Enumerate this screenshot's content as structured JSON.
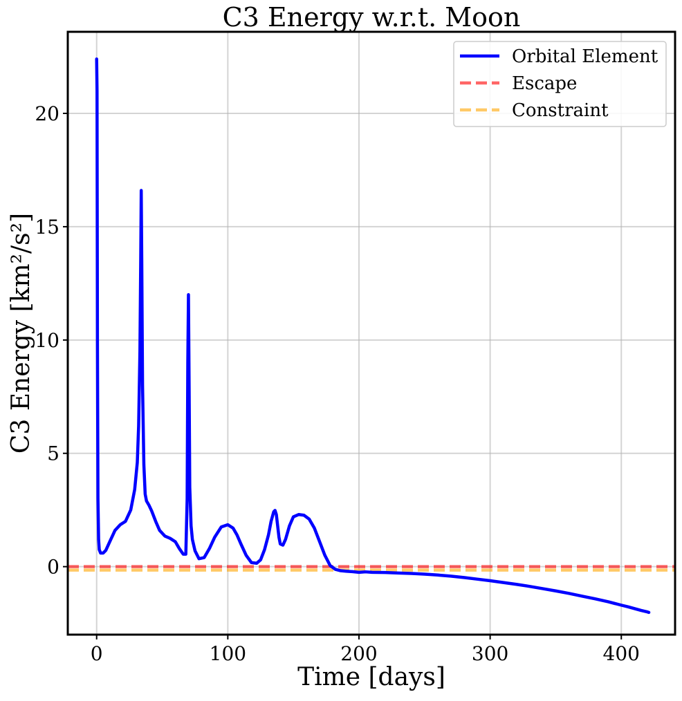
{
  "chart_data": {
    "type": "line",
    "title": "C3 Energy w.r.t. Moon",
    "xlabel": "Time [days]",
    "ylabel": "C3 Energy [km²/s²]",
    "xlim": [
      -22,
      441
    ],
    "ylim": [
      -3,
      23.6
    ],
    "xticks": [
      0,
      100,
      200,
      300,
      400
    ],
    "yticks": [
      0,
      5,
      10,
      15,
      20
    ],
    "grid": true,
    "legend_position": "top-right",
    "series": [
      {
        "name": "Orbital Element",
        "style": "solid",
        "color": "#0000ff",
        "x": [
          0,
          0.3,
          0.6,
          1,
          1.5,
          2,
          3,
          5,
          7,
          10,
          14,
          18,
          22,
          26,
          29,
          31,
          32,
          33,
          33.6,
          34,
          34.4,
          35,
          36,
          37,
          38,
          40,
          42,
          45,
          48,
          52,
          56,
          60,
          63,
          66,
          68,
          69,
          69.5,
          70,
          70.5,
          71,
          72,
          73,
          75,
          78,
          82,
          86,
          90,
          95,
          100,
          104,
          107,
          110,
          114,
          118,
          122,
          125,
          128,
          131,
          133,
          135,
          136,
          137,
          138,
          139,
          140,
          142,
          144,
          147,
          150,
          154,
          158,
          162,
          166,
          170,
          174,
          178,
          182,
          186,
          190,
          195,
          200,
          205,
          210,
          220,
          230,
          240,
          250,
          260,
          270,
          280,
          290,
          300,
          310,
          320,
          330,
          340,
          350,
          360,
          370,
          380,
          390,
          400,
          405,
          410,
          415,
          420,
          421
        ],
        "y": [
          22.4,
          21.0,
          10.0,
          3.0,
          1.2,
          0.75,
          0.6,
          0.6,
          0.72,
          1.1,
          1.6,
          1.85,
          2.0,
          2.5,
          3.4,
          4.6,
          6.2,
          9.5,
          13.5,
          16.6,
          13.5,
          8.0,
          4.5,
          3.2,
          2.9,
          2.7,
          2.45,
          2.0,
          1.6,
          1.35,
          1.25,
          1.1,
          0.8,
          0.55,
          0.55,
          3.0,
          9.0,
          12.0,
          8.0,
          3.5,
          1.8,
          1.2,
          0.7,
          0.35,
          0.4,
          0.8,
          1.3,
          1.75,
          1.85,
          1.7,
          1.4,
          1.0,
          0.5,
          0.18,
          0.15,
          0.3,
          0.75,
          1.4,
          2.0,
          2.42,
          2.48,
          2.3,
          1.8,
          1.3,
          1.0,
          0.95,
          1.2,
          1.8,
          2.2,
          2.3,
          2.27,
          2.1,
          1.7,
          1.1,
          0.5,
          0.05,
          -0.12,
          -0.18,
          -0.2,
          -0.22,
          -0.25,
          -0.23,
          -0.25,
          -0.26,
          -0.28,
          -0.3,
          -0.33,
          -0.37,
          -0.42,
          -0.48,
          -0.55,
          -0.62,
          -0.7,
          -0.78,
          -0.87,
          -0.97,
          -1.07,
          -1.18,
          -1.3,
          -1.42,
          -1.55,
          -1.7,
          -1.77,
          -1.85,
          -1.93,
          -2.0,
          -2.02
        ]
      },
      {
        "name": "Escape",
        "style": "dashed",
        "color": "#ff0000",
        "value": 0
      },
      {
        "name": "Constraint",
        "style": "dashed",
        "color": "#ffa500",
        "value": -0.15
      }
    ]
  }
}
